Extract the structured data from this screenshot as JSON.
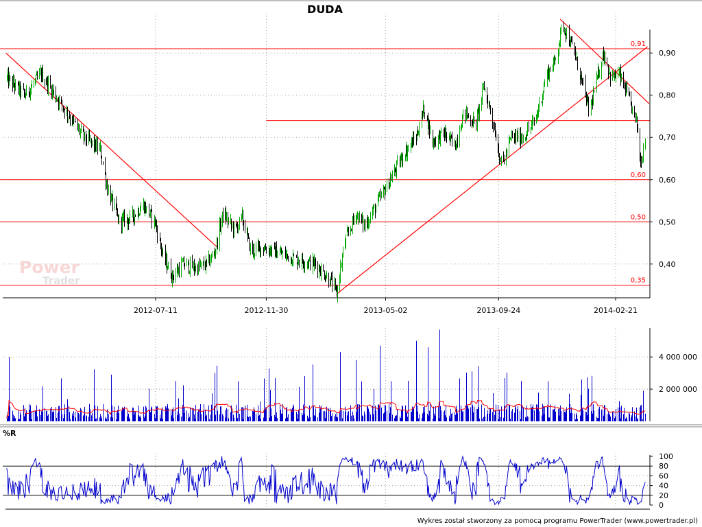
{
  "title": "DUDA",
  "footer": "Wykres został stworzony za pomocą programu PowerTrader (www.powertrader.pl)",
  "watermark": {
    "line1": "Power",
    "line2": "Trader"
  },
  "colors": {
    "up": "#00aa00",
    "down": "#000000",
    "lines": "#ff0000",
    "volume": "#0000cc",
    "volume_avg": "#ff0000",
    "wr": "#0000cc",
    "grid": "#a0a0a0",
    "level_label": "#ff0000"
  },
  "chart_data": [
    {
      "type": "candlestick",
      "title": "DUDA",
      "ylim": [
        0.32,
        0.98
      ],
      "y_ticks": [
        0.4,
        0.5,
        0.6,
        0.7,
        0.8,
        0.9
      ],
      "y_tick_labels": [
        "0,40",
        "0,50",
        "0,60",
        "0,70",
        "0,80",
        "0,90"
      ],
      "x_tick_labels": [
        "2012-07-11",
        "2012-11-30",
        "2013-05-02",
        "2013-09-24",
        "2014-02-21"
      ],
      "grid": true,
      "price_path": [
        [
          "2012-01-02",
          0.84
        ],
        [
          "2012-01-25",
          0.8
        ],
        [
          "2012-02-15",
          0.85
        ],
        [
          "2012-03-15",
          0.77
        ],
        [
          "2012-04-10",
          0.7
        ],
        [
          "2012-05-01",
          0.67
        ],
        [
          "2012-05-10",
          0.58
        ],
        [
          "2012-05-25",
          0.5
        ],
        [
          "2012-06-10",
          0.51
        ],
        [
          "2012-06-25",
          0.54
        ],
        [
          "2012-07-10",
          0.5
        ],
        [
          "2012-07-20",
          0.42
        ],
        [
          "2012-08-01",
          0.37
        ],
        [
          "2012-08-15",
          0.4
        ],
        [
          "2012-09-01",
          0.39
        ],
        [
          "2012-09-15",
          0.4
        ],
        [
          "2012-09-25",
          0.43
        ],
        [
          "2012-10-05",
          0.52
        ],
        [
          "2012-10-20",
          0.48
        ],
        [
          "2012-10-30",
          0.51
        ],
        [
          "2012-11-10",
          0.43
        ],
        [
          "2012-11-25",
          0.44
        ],
        [
          "2012-12-10",
          0.43
        ],
        [
          "2012-12-25",
          0.42
        ],
        [
          "2013-01-10",
          0.41
        ],
        [
          "2013-02-01",
          0.4
        ],
        [
          "2013-02-20",
          0.36
        ],
        [
          "2013-02-28",
          0.33
        ],
        [
          "2013-03-10",
          0.45
        ],
        [
          "2013-03-25",
          0.52
        ],
        [
          "2013-04-05",
          0.49
        ],
        [
          "2013-04-20",
          0.54
        ],
        [
          "2013-05-05",
          0.59
        ],
        [
          "2013-05-25",
          0.66
        ],
        [
          "2013-06-10",
          0.7
        ],
        [
          "2013-06-20",
          0.77
        ],
        [
          "2013-07-01",
          0.69
        ],
        [
          "2013-07-15",
          0.71
        ],
        [
          "2013-07-30",
          0.68
        ],
        [
          "2013-08-10",
          0.76
        ],
        [
          "2013-08-25",
          0.73
        ],
        [
          "2013-09-05",
          0.82
        ],
        [
          "2013-09-15",
          0.75
        ],
        [
          "2013-09-28",
          0.63
        ],
        [
          "2013-10-10",
          0.7
        ],
        [
          "2013-10-25",
          0.7
        ],
        [
          "2013-11-10",
          0.74
        ],
        [
          "2013-11-25",
          0.85
        ],
        [
          "2013-12-05",
          0.88
        ],
        [
          "2013-12-15",
          0.97
        ],
        [
          "2013-12-30",
          0.9
        ],
        [
          "2014-01-10",
          0.82
        ],
        [
          "2014-01-18",
          0.76
        ],
        [
          "2014-01-28",
          0.84
        ],
        [
          "2014-02-05",
          0.9
        ],
        [
          "2014-02-15",
          0.84
        ],
        [
          "2014-02-25",
          0.85
        ],
        [
          "2014-03-10",
          0.79
        ],
        [
          "2014-03-20",
          0.73
        ],
        [
          "2014-03-25",
          0.64
        ],
        [
          "2014-03-30",
          0.7
        ]
      ],
      "levels": [
        {
          "value": 0.91,
          "label": "0,91"
        },
        {
          "value": 0.6,
          "label": "0,60"
        },
        {
          "value": 0.5,
          "label": "0,50"
        },
        {
          "value": 0.35,
          "label": "0,35"
        }
      ],
      "partial_level": {
        "value": 0.74,
        "from": "2012-11-30"
      },
      "trend_lines": [
        {
          "from": [
            "2012-01-01",
            0.9
          ],
          "to": [
            "2012-09-28",
            0.44
          ]
        },
        {
          "from": [
            "2013-03-01",
            0.33
          ],
          "to": [
            "2014-04-03",
            0.915
          ]
        },
        {
          "from": [
            "2013-12-12",
            0.98
          ],
          "to": [
            "2014-04-05",
            0.78
          ]
        }
      ]
    },
    {
      "type": "bar",
      "series": [
        {
          "name": "",
          "role": "volume"
        },
        {
          "name": "",
          "role": "moving-average"
        }
      ],
      "y_ticks": [
        2000000,
        4000000
      ],
      "y_tick_labels": [
        "2 000 000",
        "4 000 000"
      ],
      "ylim": [
        0,
        5800000
      ],
      "typical_volume": 800000,
      "peak_volumes": [
        [
          "2012-01-05",
          4000000
        ],
        [
          "2012-05-15",
          2900000
        ],
        [
          "2012-09-25",
          3000000
        ],
        [
          "2013-03-05",
          4300000
        ],
        [
          "2013-03-25",
          3800000
        ],
        [
          "2013-04-25",
          4700000
        ],
        [
          "2013-05-25",
          3500000
        ],
        [
          "2013-06-10",
          5000000
        ],
        [
          "2013-06-25",
          4600000
        ],
        [
          "2013-07-10",
          5700000
        ],
        [
          "2013-08-20",
          3100000
        ],
        [
          "2013-12-15",
          3500000
        ],
        [
          "2014-03-28",
          1900000
        ]
      ]
    },
    {
      "type": "line",
      "title": "%R",
      "series": [
        {
          "name": "",
          "role": "williams-r"
        }
      ],
      "ylim": [
        0,
        100
      ],
      "y_ticks": [
        0,
        20,
        40,
        60,
        80,
        100
      ],
      "y_tick_labels": [
        "0",
        "20",
        "40",
        "60",
        "80",
        "100"
      ],
      "reference_levels": [
        20,
        80
      ]
    }
  ]
}
